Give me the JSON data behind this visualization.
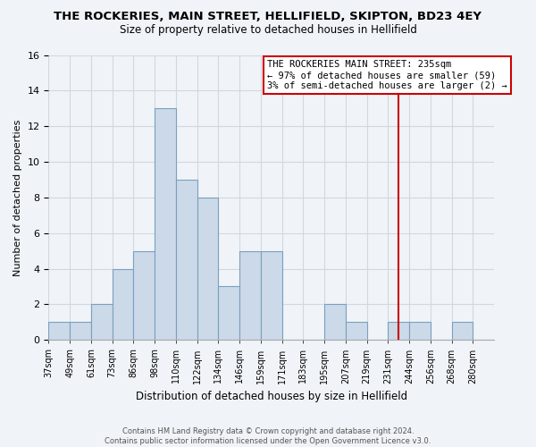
{
  "title": "THE ROCKERIES, MAIN STREET, HELLIFIELD, SKIPTON, BD23 4EY",
  "subtitle": "Size of property relative to detached houses in Hellifield",
  "xlabel": "Distribution of detached houses by size in Hellifield",
  "ylabel": "Number of detached properties",
  "bar_color": "#ccd9e8",
  "bar_edgecolor": "#7aa0c0",
  "bin_labels": [
    "37sqm",
    "49sqm",
    "61sqm",
    "73sqm",
    "86sqm",
    "98sqm",
    "110sqm",
    "122sqm",
    "134sqm",
    "146sqm",
    "159sqm",
    "171sqm",
    "183sqm",
    "195sqm",
    "207sqm",
    "219sqm",
    "231sqm",
    "244sqm",
    "256sqm",
    "268sqm",
    "280sqm"
  ],
  "bar_heights": [
    1,
    1,
    2,
    4,
    5,
    13,
    9,
    8,
    3,
    5,
    5,
    0,
    0,
    2,
    1,
    0,
    1,
    1,
    0,
    1,
    0
  ],
  "ylim": [
    0,
    16
  ],
  "yticks": [
    0,
    2,
    4,
    6,
    8,
    10,
    12,
    14,
    16
  ],
  "vline_x_idx": 16,
  "vline_color": "#cc0000",
  "annotation_title": "THE ROCKERIES MAIN STREET: 235sqm",
  "annotation_line1": "← 97% of detached houses are smaller (59)",
  "annotation_line2": "3% of semi-detached houses are larger (2) →",
  "annotation_box_color": "#ffffff",
  "annotation_box_edgecolor": "#cc0000",
  "footer_line1": "Contains HM Land Registry data © Crown copyright and database right 2024.",
  "footer_line2": "Contains public sector information licensed under the Open Government Licence v3.0.",
  "background_color": "#f0f4f8",
  "grid_color": "#d0d8e0"
}
